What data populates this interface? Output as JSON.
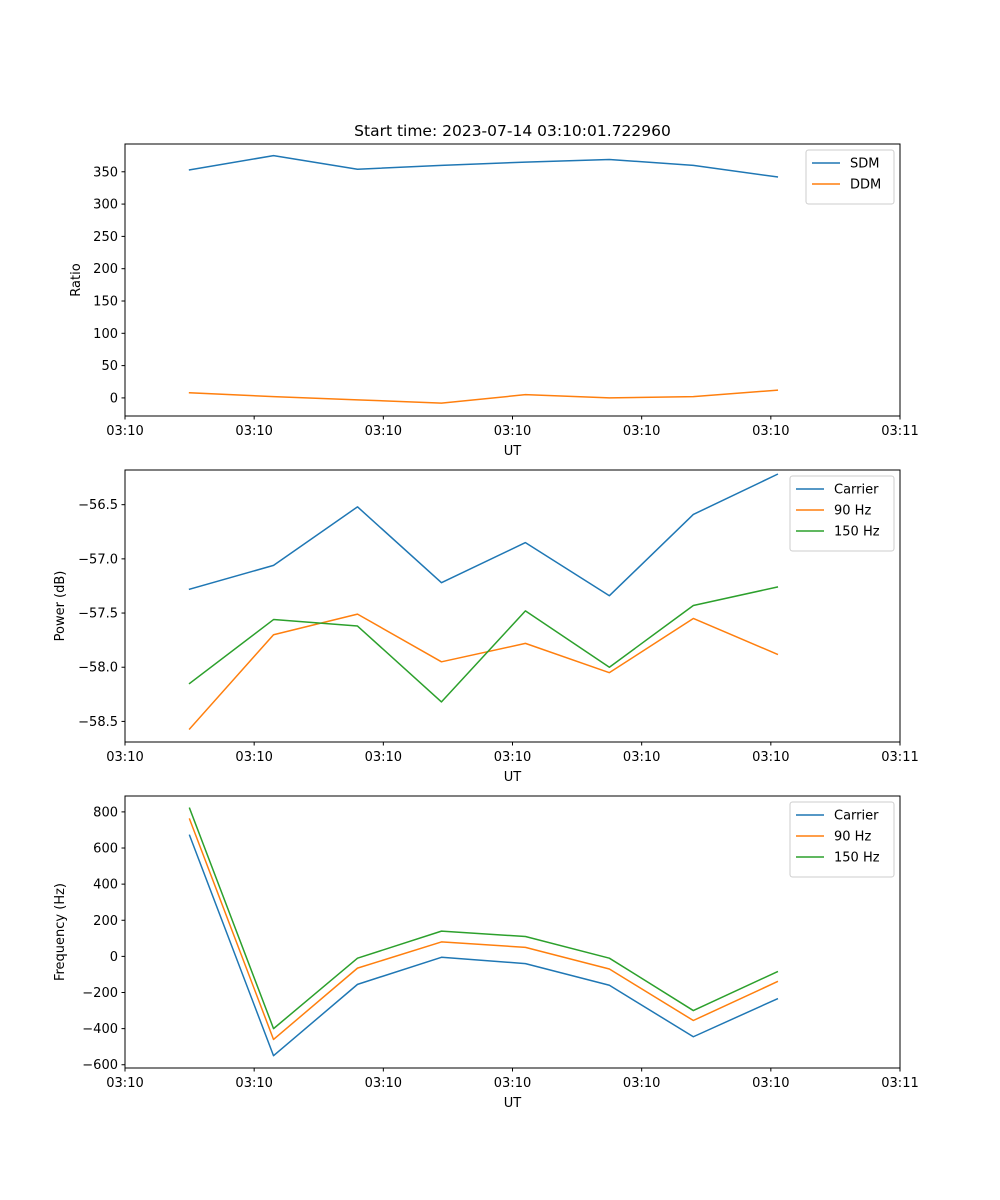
{
  "chart_data": [
    {
      "type": "line",
      "title": "Start time: 2023-07-14 03:10:01.722960",
      "xlabel": "UT",
      "ylabel": "Ratio",
      "x": [
        0.25,
        0.575,
        0.9,
        1.225,
        1.55,
        1.875,
        2.2,
        2.525
      ],
      "xlim": [
        0,
        3
      ],
      "xticks": [
        0,
        0.5,
        1,
        1.5,
        2,
        2.5,
        3
      ],
      "xtick_labels": [
        "03:10",
        "03:10",
        "03:10",
        "03:10",
        "03:10",
        "03:10",
        "03:11"
      ],
      "ylim": [
        -28,
        393
      ],
      "yticks": [
        0,
        50,
        100,
        150,
        200,
        250,
        300,
        350
      ],
      "ytick_labels": [
        "0",
        "50",
        "100",
        "150",
        "200",
        "250",
        "300",
        "350"
      ],
      "legend_position": "top-right",
      "series": [
        {
          "name": "SDM",
          "color": "#1f77b4",
          "values": [
            353,
            375,
            354,
            360,
            365,
            369,
            360,
            342
          ]
        },
        {
          "name": "DDM",
          "color": "#ff7f0e",
          "values": [
            8,
            2,
            -3,
            -8,
            5,
            0,
            2,
            12
          ]
        }
      ]
    },
    {
      "type": "line",
      "title": "",
      "xlabel": "UT",
      "ylabel": "Power (dB)",
      "x": [
        0.25,
        0.575,
        0.9,
        1.225,
        1.55,
        1.875,
        2.2,
        2.525
      ],
      "xlim": [
        0,
        3
      ],
      "xticks": [
        0,
        0.5,
        1,
        1.5,
        2,
        2.5,
        3
      ],
      "xtick_labels": [
        "03:10",
        "03:10",
        "03:10",
        "03:10",
        "03:10",
        "03:10",
        "03:11"
      ],
      "ylim": [
        -58.69,
        -56.18
      ],
      "yticks": [
        -58.5,
        -58.0,
        -57.5,
        -57.0,
        -56.5
      ],
      "ytick_labels": [
        "−58.5",
        "−58.0",
        "−57.5",
        "−57.0",
        "−56.5"
      ],
      "legend_position": "top-right",
      "series": [
        {
          "name": "Carrier",
          "color": "#1f77b4",
          "values": [
            -57.28,
            -57.06,
            -56.52,
            -57.22,
            -56.85,
            -57.34,
            -56.59,
            -56.22
          ]
        },
        {
          "name": "90 Hz",
          "color": "#ff7f0e",
          "values": [
            -58.57,
            -57.7,
            -57.51,
            -57.95,
            -57.78,
            -58.05,
            -57.55,
            -57.88
          ]
        },
        {
          "name": "150 Hz",
          "color": "#2ca02c",
          "values": [
            -58.15,
            -57.56,
            -57.62,
            -58.32,
            -57.48,
            -58.0,
            -57.43,
            -57.26
          ]
        }
      ]
    },
    {
      "type": "line",
      "title": "",
      "xlabel": "UT",
      "ylabel": "Frequency (Hz)",
      "x": [
        0.25,
        0.575,
        0.9,
        1.225,
        1.55,
        1.875,
        2.2,
        2.525
      ],
      "xlim": [
        0,
        3
      ],
      "xticks": [
        0,
        0.5,
        1,
        1.5,
        2,
        2.5,
        3
      ],
      "xtick_labels": [
        "03:10",
        "03:10",
        "03:10",
        "03:10",
        "03:10",
        "03:10",
        "03:11"
      ],
      "ylim": [
        -618,
        888
      ],
      "yticks": [
        -600,
        -400,
        -200,
        0,
        200,
        400,
        600,
        800
      ],
      "ytick_labels": [
        "−600",
        "−400",
        "−200",
        "0",
        "200",
        "400",
        "600",
        "800"
      ],
      "legend_position": "top-right",
      "series": [
        {
          "name": "Carrier",
          "color": "#1f77b4",
          "values": [
            670,
            -550,
            -155,
            -5,
            -40,
            -160,
            -445,
            -235
          ]
        },
        {
          "name": "90 Hz",
          "color": "#ff7f0e",
          "values": [
            760,
            -460,
            -65,
            80,
            50,
            -70,
            -355,
            -140
          ]
        },
        {
          "name": "150 Hz",
          "color": "#2ca02c",
          "values": [
            820,
            -400,
            -10,
            140,
            110,
            -10,
            -300,
            -85
          ]
        }
      ]
    }
  ]
}
